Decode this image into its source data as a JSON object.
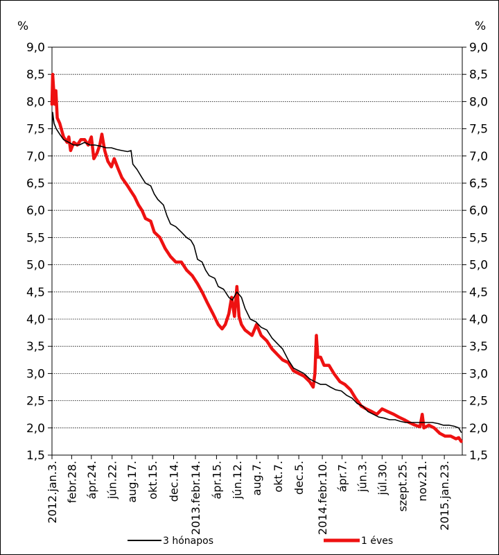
{
  "chart_data": {
    "type": "line",
    "y_unit_left": "%",
    "y_unit_right": "%",
    "ylim": [
      1.5,
      9.0
    ],
    "yticks": [
      "9,0",
      "8,5",
      "8,0",
      "7,5",
      "7,0",
      "6,5",
      "6,0",
      "5,5",
      "5,0",
      "4,5",
      "4,0",
      "3,5",
      "3,0",
      "2,5",
      "2,0",
      "1,5"
    ],
    "x_range": [
      "2012-01-03",
      "2015-03-15"
    ],
    "xtick_labels": [
      {
        "date": "2012-01-03",
        "label": "2012.jan.3."
      },
      {
        "date": "2012-02-28",
        "label": "febr.28."
      },
      {
        "date": "2012-04-24",
        "label": "ápr.24."
      },
      {
        "date": "2012-06-22",
        "label": "jún.22."
      },
      {
        "date": "2012-08-17",
        "label": "aug.17."
      },
      {
        "date": "2012-10-15",
        "label": "okt.15."
      },
      {
        "date": "2012-12-14",
        "label": "dec.14."
      },
      {
        "date": "2013-02-14",
        "label": "2013.febr.14."
      },
      {
        "date": "2013-04-15",
        "label": "ápr.15."
      },
      {
        "date": "2013-06-12",
        "label": "jún.12."
      },
      {
        "date": "2013-08-07",
        "label": "aug.7."
      },
      {
        "date": "2013-10-07",
        "label": "okt.7."
      },
      {
        "date": "2013-12-05",
        "label": "dec.5."
      },
      {
        "date": "2014-02-10",
        "label": "2014.febr.10."
      },
      {
        "date": "2014-04-07",
        "label": "ápr.7."
      },
      {
        "date": "2014-06-03",
        "label": "jún.3."
      },
      {
        "date": "2014-07-30",
        "label": "júl.30."
      },
      {
        "date": "2014-09-25",
        "label": "szept.25."
      },
      {
        "date": "2014-11-21",
        "label": "nov.21."
      },
      {
        "date": "2015-01-23",
        "label": "2015.jan.23."
      }
    ],
    "grid": true,
    "legend_position": "bottom",
    "series": [
      {
        "name": "3 hónapos",
        "color": "#000000",
        "points": [
          [
            "2012-01-03",
            7.4
          ],
          [
            "2012-01-05",
            7.8
          ],
          [
            "2012-01-09",
            7.6
          ],
          [
            "2012-01-15",
            7.5
          ],
          [
            "2012-01-25",
            7.4
          ],
          [
            "2012-02-05",
            7.3
          ],
          [
            "2012-02-20",
            7.25
          ],
          [
            "2012-03-05",
            7.2
          ],
          [
            "2012-03-20",
            7.2
          ],
          [
            "2012-04-05",
            7.25
          ],
          [
            "2012-04-20",
            7.2
          ],
          [
            "2012-05-05",
            7.2
          ],
          [
            "2012-05-20",
            7.18
          ],
          [
            "2012-06-05",
            7.15
          ],
          [
            "2012-06-20",
            7.15
          ],
          [
            "2012-07-05",
            7.12
          ],
          [
            "2012-07-20",
            7.1
          ],
          [
            "2012-08-05",
            7.08
          ],
          [
            "2012-08-15",
            7.1
          ],
          [
            "2012-08-20",
            6.85
          ],
          [
            "2012-09-01",
            6.75
          ],
          [
            "2012-09-15",
            6.6
          ],
          [
            "2012-09-25",
            6.5
          ],
          [
            "2012-10-10",
            6.45
          ],
          [
            "2012-10-20",
            6.3
          ],
          [
            "2012-10-30",
            6.2
          ],
          [
            "2012-11-15",
            6.1
          ],
          [
            "2012-11-25",
            5.9
          ],
          [
            "2012-12-05",
            5.75
          ],
          [
            "2012-12-20",
            5.7
          ],
          [
            "2013-01-05",
            5.6
          ],
          [
            "2013-01-20",
            5.5
          ],
          [
            "2013-02-01",
            5.45
          ],
          [
            "2013-02-10",
            5.35
          ],
          [
            "2013-02-20",
            5.1
          ],
          [
            "2013-03-05",
            5.05
          ],
          [
            "2013-03-15",
            4.9
          ],
          [
            "2013-03-25",
            4.8
          ],
          [
            "2013-04-10",
            4.75
          ],
          [
            "2013-04-20",
            4.6
          ],
          [
            "2013-05-05",
            4.55
          ],
          [
            "2013-05-20",
            4.4
          ],
          [
            "2013-05-30",
            4.35
          ],
          [
            "2013-06-12",
            4.5
          ],
          [
            "2013-06-25",
            4.4
          ],
          [
            "2013-07-05",
            4.2
          ],
          [
            "2013-07-20",
            4.0
          ],
          [
            "2013-08-05",
            3.95
          ],
          [
            "2013-08-20",
            3.85
          ],
          [
            "2013-09-05",
            3.8
          ],
          [
            "2013-09-20",
            3.65
          ],
          [
            "2013-10-05",
            3.55
          ],
          [
            "2013-10-20",
            3.45
          ],
          [
            "2013-11-05",
            3.25
          ],
          [
            "2013-11-20",
            3.1
          ],
          [
            "2013-12-05",
            3.05
          ],
          [
            "2013-12-20",
            3.0
          ],
          [
            "2014-01-05",
            2.9
          ],
          [
            "2014-01-20",
            2.85
          ],
          [
            "2014-02-05",
            2.8
          ],
          [
            "2014-02-20",
            2.8
          ],
          [
            "2014-03-05",
            2.75
          ],
          [
            "2014-03-20",
            2.7
          ],
          [
            "2014-04-05",
            2.68
          ],
          [
            "2014-04-20",
            2.6
          ],
          [
            "2014-05-05",
            2.55
          ],
          [
            "2014-05-20",
            2.45
          ],
          [
            "2014-06-05",
            2.4
          ],
          [
            "2014-06-20",
            2.3
          ],
          [
            "2014-07-05",
            2.25
          ],
          [
            "2014-07-20",
            2.2
          ],
          [
            "2014-08-05",
            2.18
          ],
          [
            "2014-08-20",
            2.15
          ],
          [
            "2014-09-05",
            2.15
          ],
          [
            "2014-09-20",
            2.12
          ],
          [
            "2014-10-05",
            2.1
          ],
          [
            "2014-10-20",
            2.1
          ],
          [
            "2014-11-05",
            2.1
          ],
          [
            "2014-11-20",
            2.1
          ],
          [
            "2014-12-05",
            2.1
          ],
          [
            "2014-12-20",
            2.1
          ],
          [
            "2015-01-05",
            2.08
          ],
          [
            "2015-01-20",
            2.05
          ],
          [
            "2015-02-05",
            2.05
          ],
          [
            "2015-02-20",
            2.03
          ],
          [
            "2015-03-05",
            2.0
          ],
          [
            "2015-03-12",
            1.92
          ]
        ]
      },
      {
        "name": "1 éves",
        "color": "#ee1111",
        "points": [
          [
            "2012-01-03",
            7.95
          ],
          [
            "2012-01-05",
            8.5
          ],
          [
            "2012-01-08",
            8.2
          ],
          [
            "2012-01-11",
            7.95
          ],
          [
            "2012-01-14",
            8.2
          ],
          [
            "2012-01-18",
            7.7
          ],
          [
            "2012-01-25",
            7.6
          ],
          [
            "2012-02-05",
            7.35
          ],
          [
            "2012-02-15",
            7.25
          ],
          [
            "2012-02-20",
            7.35
          ],
          [
            "2012-02-25",
            7.1
          ],
          [
            "2012-03-05",
            7.25
          ],
          [
            "2012-03-15",
            7.2
          ],
          [
            "2012-03-25",
            7.3
          ],
          [
            "2012-04-05",
            7.3
          ],
          [
            "2012-04-15",
            7.2
          ],
          [
            "2012-04-24",
            7.35
          ],
          [
            "2012-05-01",
            6.95
          ],
          [
            "2012-05-10",
            7.05
          ],
          [
            "2012-05-18",
            7.2
          ],
          [
            "2012-05-24",
            7.4
          ],
          [
            "2012-06-01",
            7.1
          ],
          [
            "2012-06-10",
            6.9
          ],
          [
            "2012-06-20",
            6.8
          ],
          [
            "2012-06-28",
            6.95
          ],
          [
            "2012-07-10",
            6.75
          ],
          [
            "2012-07-20",
            6.6
          ],
          [
            "2012-08-05",
            6.45
          ],
          [
            "2012-08-15",
            6.35
          ],
          [
            "2012-08-25",
            6.25
          ],
          [
            "2012-09-05",
            6.1
          ],
          [
            "2012-09-15",
            6.0
          ],
          [
            "2012-09-25",
            5.85
          ],
          [
            "2012-10-10",
            5.8
          ],
          [
            "2012-10-20",
            5.6
          ],
          [
            "2012-11-05",
            5.5
          ],
          [
            "2012-11-20",
            5.3
          ],
          [
            "2012-12-05",
            5.15
          ],
          [
            "2012-12-20",
            5.05
          ],
          [
            "2013-01-05",
            5.05
          ],
          [
            "2013-01-20",
            4.9
          ],
          [
            "2013-02-05",
            4.8
          ],
          [
            "2013-02-20",
            4.65
          ],
          [
            "2013-03-05",
            4.5
          ],
          [
            "2013-03-20",
            4.3
          ],
          [
            "2013-04-05",
            4.1
          ],
          [
            "2013-04-20",
            3.9
          ],
          [
            "2013-05-01",
            3.82
          ],
          [
            "2013-05-10",
            3.9
          ],
          [
            "2013-05-20",
            4.1
          ],
          [
            "2013-05-28",
            4.4
          ],
          [
            "2013-06-05",
            4.05
          ],
          [
            "2013-06-12",
            4.6
          ],
          [
            "2013-06-18",
            4.05
          ],
          [
            "2013-06-25",
            3.9
          ],
          [
            "2013-07-05",
            3.8
          ],
          [
            "2013-07-15",
            3.75
          ],
          [
            "2013-07-25",
            3.7
          ],
          [
            "2013-08-07",
            3.9
          ],
          [
            "2013-08-20",
            3.7
          ],
          [
            "2013-09-05",
            3.6
          ],
          [
            "2013-09-20",
            3.45
          ],
          [
            "2013-10-05",
            3.35
          ],
          [
            "2013-10-20",
            3.25
          ],
          [
            "2013-11-05",
            3.2
          ],
          [
            "2013-11-20",
            3.05
          ],
          [
            "2013-12-05",
            3.0
          ],
          [
            "2013-12-20",
            2.95
          ],
          [
            "2014-01-05",
            2.85
          ],
          [
            "2014-01-15",
            2.75
          ],
          [
            "2014-01-20",
            3.0
          ],
          [
            "2014-01-24",
            3.7
          ],
          [
            "2014-01-28",
            3.3
          ],
          [
            "2014-02-05",
            3.3
          ],
          [
            "2014-02-15",
            3.15
          ],
          [
            "2014-03-01",
            3.15
          ],
          [
            "2014-03-15",
            3.0
          ],
          [
            "2014-04-01",
            2.85
          ],
          [
            "2014-04-15",
            2.8
          ],
          [
            "2014-05-01",
            2.7
          ],
          [
            "2014-05-15",
            2.55
          ],
          [
            "2014-06-01",
            2.4
          ],
          [
            "2014-06-15",
            2.35
          ],
          [
            "2014-07-01",
            2.3
          ],
          [
            "2014-07-15",
            2.25
          ],
          [
            "2014-07-30",
            2.35
          ],
          [
            "2014-08-15",
            2.3
          ],
          [
            "2014-09-01",
            2.25
          ],
          [
            "2014-09-15",
            2.2
          ],
          [
            "2014-10-01",
            2.15
          ],
          [
            "2014-10-15",
            2.1
          ],
          [
            "2014-11-01",
            2.05
          ],
          [
            "2014-11-15",
            2.02
          ],
          [
            "2014-11-21",
            2.25
          ],
          [
            "2014-11-26",
            2.0
          ],
          [
            "2014-12-10",
            2.05
          ],
          [
            "2014-12-25",
            2.0
          ],
          [
            "2015-01-10",
            1.9
          ],
          [
            "2015-01-25",
            1.85
          ],
          [
            "2015-02-10",
            1.85
          ],
          [
            "2015-02-25",
            1.8
          ],
          [
            "2015-03-05",
            1.82
          ],
          [
            "2015-03-12",
            1.75
          ]
        ]
      }
    ]
  }
}
